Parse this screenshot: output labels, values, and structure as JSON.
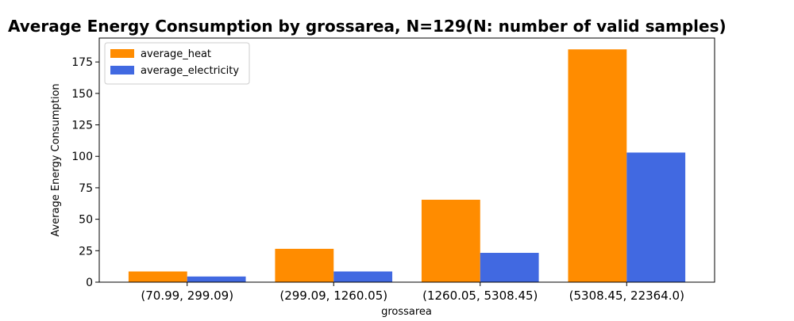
{
  "chart_data": {
    "type": "bar",
    "title": "Average Energy Consumption by grossarea, N=129(N: number of valid samples)",
    "xlabel": "grossarea",
    "ylabel": "Average Energy Consumption",
    "categories": [
      "(70.99, 299.09)",
      "(299.09, 1260.05)",
      "(1260.05, 5308.45)",
      "(5308.45, 22364.0)"
    ],
    "series": [
      {
        "name": "average_heat",
        "color": "#ff8c00",
        "values": [
          8.5,
          26.5,
          65.5,
          185.0
        ]
      },
      {
        "name": "average_electricity",
        "color": "#4169e1",
        "values": [
          4.5,
          8.5,
          23.3,
          103.0
        ]
      }
    ],
    "ylim": [
      0,
      194
    ],
    "yticks": [
      0,
      25,
      50,
      75,
      100,
      125,
      150,
      175
    ],
    "grid": false,
    "legend_position": "top-left"
  }
}
